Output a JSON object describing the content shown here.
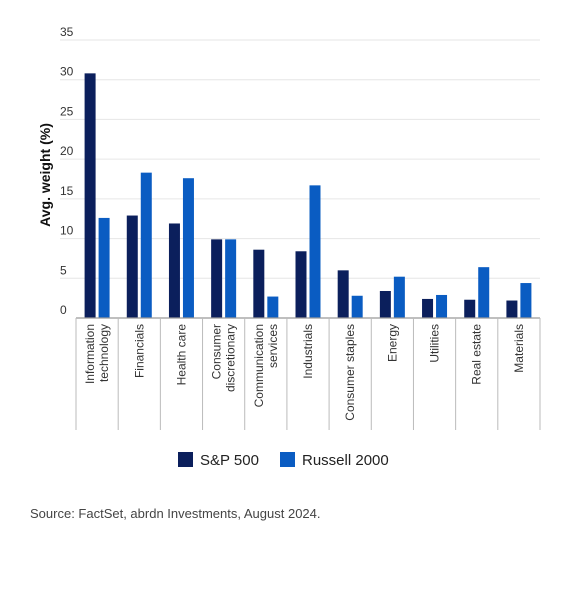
{
  "chart_data": {
    "type": "bar",
    "ylabel": "Avg. weight (%)",
    "ylim": [
      0,
      35
    ],
    "yticks": [
      0,
      5,
      10,
      15,
      20,
      25,
      30,
      35
    ],
    "grid": true,
    "legend": "bottom",
    "categories": [
      [
        "Information",
        "technology"
      ],
      [
        "Financials"
      ],
      [
        "Health care"
      ],
      [
        "Consumer",
        "discretionary"
      ],
      [
        "Communication",
        "services"
      ],
      [
        "Industrials"
      ],
      [
        "Consumer staples"
      ],
      [
        "Energy"
      ],
      [
        "Utilities"
      ],
      [
        "Real estate"
      ],
      [
        "Materials"
      ]
    ],
    "series": [
      {
        "name": "S&P 500",
        "color": "#0b1f5c",
        "values": [
          30.8,
          12.9,
          11.9,
          9.9,
          8.6,
          8.4,
          6.0,
          3.4,
          2.4,
          2.3,
          2.2
        ]
      },
      {
        "name": "Russell 2000",
        "color": "#0a5cc2",
        "values": [
          12.6,
          18.3,
          17.6,
          9.9,
          2.7,
          16.7,
          2.8,
          5.2,
          2.9,
          6.4,
          4.4
        ]
      }
    ]
  },
  "source": "Source: FactSet, abrdn Investments, August 2024."
}
